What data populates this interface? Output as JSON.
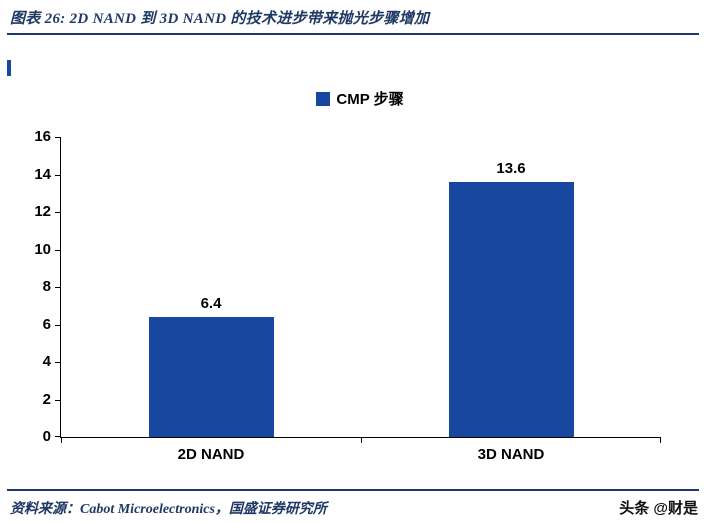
{
  "header": {
    "title": "图表 26:  2D NAND 到 3D NAND 的技术进步带来抛光步骤增加"
  },
  "chart_data": {
    "type": "bar",
    "categories": [
      "2D NAND",
      "3D NAND"
    ],
    "values": [
      6.4,
      13.6
    ],
    "value_labels": [
      "6.4",
      "13.6"
    ],
    "legend": "CMP 步骤",
    "title": "",
    "xlabel": "",
    "ylabel": "",
    "ylim": [
      0,
      16
    ],
    "ytick_step": 2,
    "grid": false,
    "legend_position": "top-center",
    "bar_color": "#17479E"
  },
  "footer": {
    "source": "资料来源：Cabot Microelectronics，国盛证券研究所",
    "watermark": "头条 @财是"
  },
  "colors": {
    "accent_navy": "#1F3864",
    "bar_navy": "#17479E",
    "axis_black": "#000000",
    "background": "#FFFFFF"
  }
}
